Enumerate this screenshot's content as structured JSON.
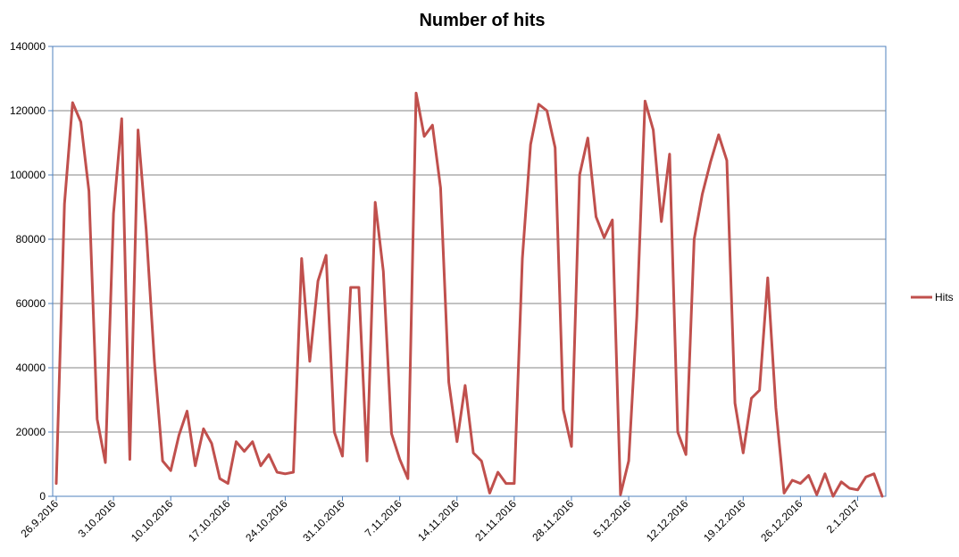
{
  "chart_data": {
    "type": "line",
    "title": "Number of hits",
    "xlabel": "",
    "ylabel": "",
    "ylim": [
      0,
      140000
    ],
    "y_ticks": [
      0,
      20000,
      40000,
      60000,
      80000,
      100000,
      120000,
      140000
    ],
    "x_tick_labels": [
      "26.9.2016",
      "3.10.2016",
      "10.10.2016",
      "17.10.2016",
      "24.10.2016",
      "31.10.2016",
      "7.11.2016",
      "14.11.2016",
      "21.11.2016",
      "28.11.2016",
      "5.12.2016",
      "12.12.2016",
      "19.12.2016",
      "26.12.2016",
      "2.1.2017"
    ],
    "x_tick_step_days": 7,
    "grid": true,
    "legend_position": "right",
    "series": [
      {
        "name": "Hits",
        "color": "#c0504d",
        "values": [
          4000,
          91000,
          122500,
          116500,
          95000,
          24000,
          10500,
          88000,
          117500,
          11500,
          114000,
          83000,
          42000,
          11000,
          8000,
          19000,
          26500,
          9500,
          21000,
          16500,
          5500,
          4000,
          17000,
          14000,
          17000,
          9500,
          13000,
          7500,
          7000,
          7500,
          74000,
          42000,
          67000,
          75000,
          20000,
          12500,
          65000,
          65000,
          11000,
          91500,
          70000,
          19500,
          11500,
          5500,
          125500,
          112000,
          115500,
          96000,
          35500,
          17000,
          34500,
          13500,
          11000,
          1000,
          7500,
          4000,
          4000,
          74000,
          109500,
          122000,
          120000,
          108500,
          27000,
          15500,
          100000,
          111500,
          87000,
          80500,
          86000,
          500,
          11000,
          56000,
          123000,
          114000,
          85500,
          106500,
          20000,
          13000,
          80000,
          94000,
          104000,
          112500,
          104500,
          29000,
          13500,
          30500,
          33000,
          68000,
          27500,
          1000,
          5000,
          4000,
          6500,
          500,
          7000,
          0,
          4500,
          2500,
          2000,
          6000,
          7000,
          0
        ]
      }
    ]
  }
}
